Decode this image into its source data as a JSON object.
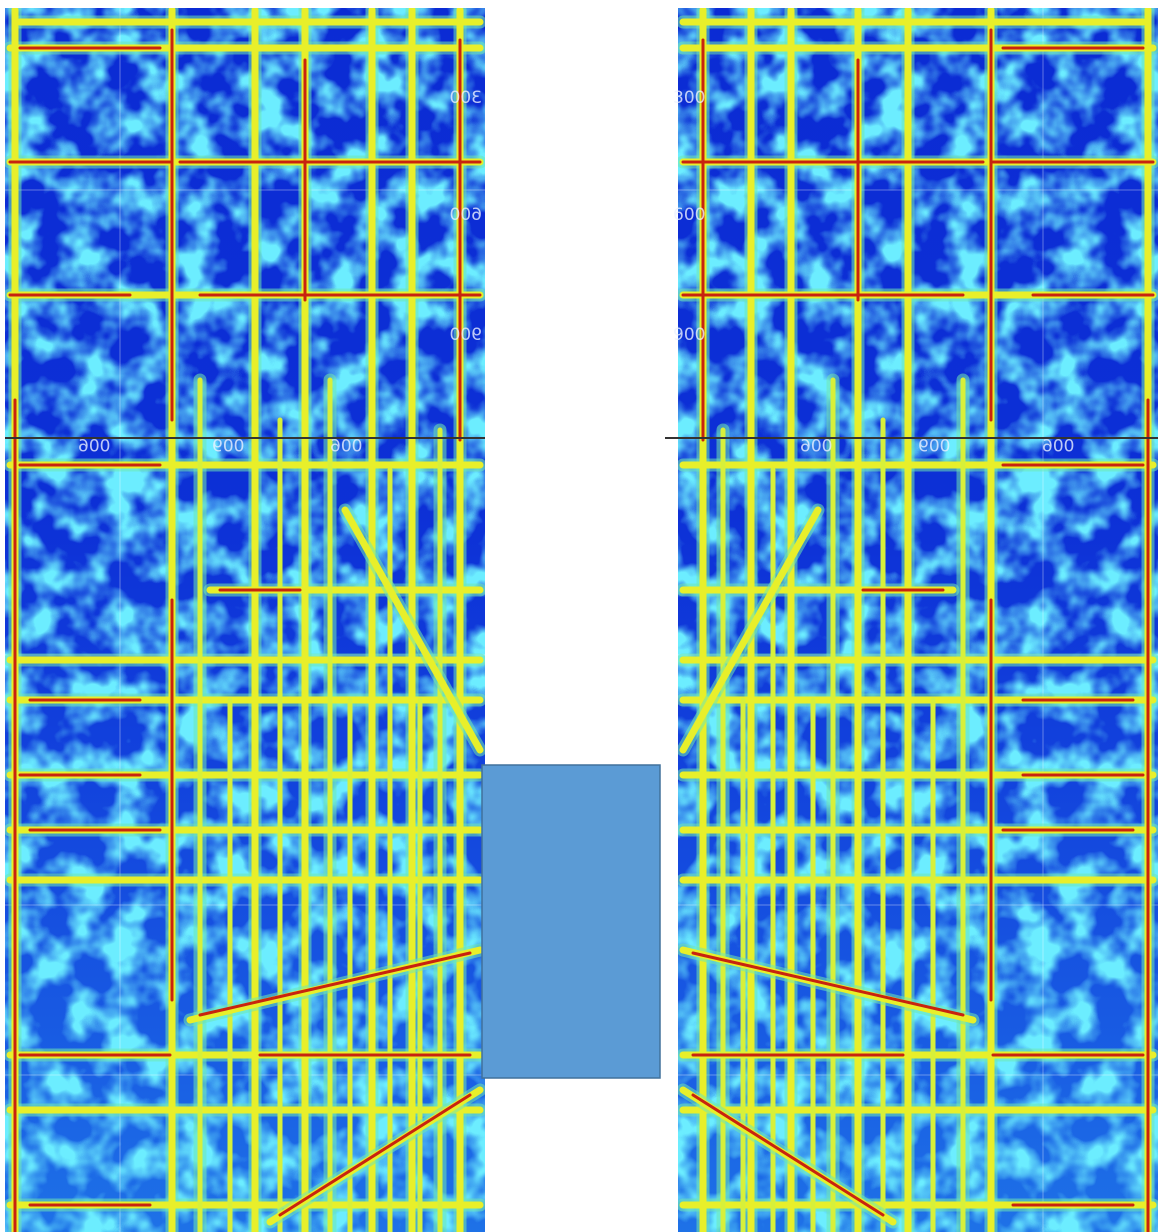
{
  "labels": {
    "left": [
      "300",
      "600",
      "900"
    ],
    "right": [
      "300",
      "600",
      "900"
    ],
    "left_lower": [
      "900",
      "600",
      "900"
    ],
    "right_lower": [
      "900",
      "600",
      "900"
    ]
  }
}
